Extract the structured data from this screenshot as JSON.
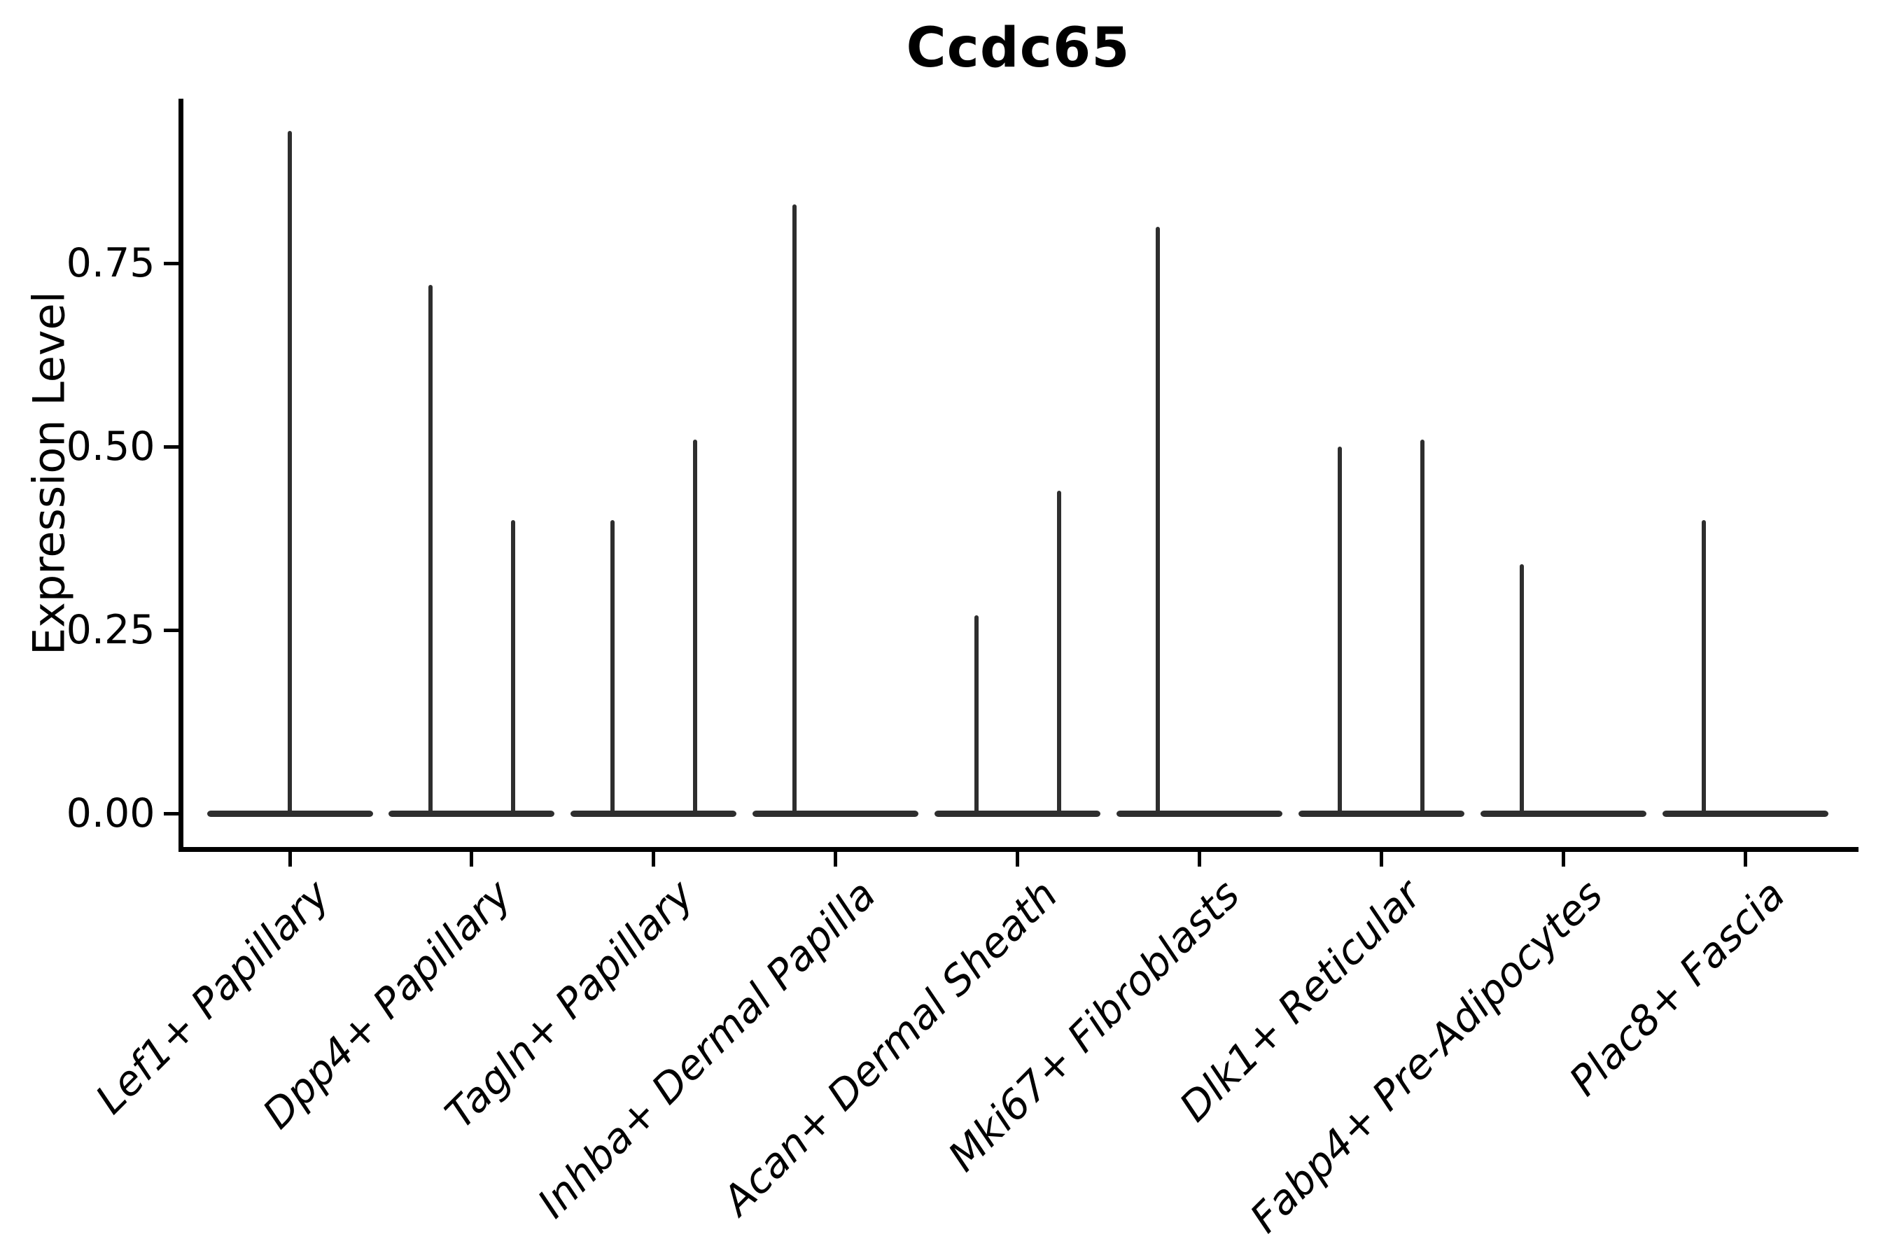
{
  "figure": {
    "title": "Ccdc65",
    "ylabel": "Expression Level",
    "background": "#ffffff"
  },
  "chart_data": {
    "type": "violin",
    "title": "Ccdc65",
    "xlabel": "",
    "ylabel": "Expression Level",
    "ylim": [
      -0.05,
      0.97
    ],
    "grid": false,
    "legend": "none",
    "yticks": [
      {
        "label": "0.00",
        "value": 0.0
      },
      {
        "label": "0.25",
        "value": 0.25
      },
      {
        "label": "0.50",
        "value": 0.5
      },
      {
        "label": "0.75",
        "value": 0.75
      }
    ],
    "categories": [
      "Lef1+ Papillary",
      "Dpp4+ Papillary",
      "Tagln+ Papillary",
      "Inhba+ Dermal Papilla",
      "Acan+ Dermal Sheath",
      "Mki67+ Fibroblasts",
      "Dlk1+ Reticular",
      "Fabp4+ Pre-Adipocytes",
      "Plac8+ Fascia"
    ],
    "violins": [
      {
        "category": "Lef1+ Papillary",
        "baseline_value": 0.0,
        "spikes": [
          {
            "pos": "center",
            "max_value": 0.93
          }
        ]
      },
      {
        "category": "Dpp4+ Papillary",
        "baseline_value": 0.0,
        "spikes": [
          {
            "pos": "left",
            "max_value": 0.72
          },
          {
            "pos": "right",
            "max_value": 0.4
          }
        ]
      },
      {
        "category": "Tagln+ Papillary",
        "baseline_value": 0.0,
        "spikes": [
          {
            "pos": "left",
            "max_value": 0.4
          },
          {
            "pos": "right",
            "max_value": 0.51
          }
        ]
      },
      {
        "category": "Inhba+ Dermal Papilla",
        "baseline_value": 0.0,
        "spikes": [
          {
            "pos": "left",
            "max_value": 0.83
          }
        ]
      },
      {
        "category": "Acan+ Dermal Sheath",
        "baseline_value": 0.0,
        "spikes": [
          {
            "pos": "left",
            "max_value": 0.27
          },
          {
            "pos": "right",
            "max_value": 0.44
          }
        ]
      },
      {
        "category": "Mki67+ Fibroblasts",
        "baseline_value": 0.0,
        "spikes": [
          {
            "pos": "left",
            "max_value": 0.8
          }
        ]
      },
      {
        "category": "Dlk1+ Reticular",
        "baseline_value": 0.0,
        "spikes": [
          {
            "pos": "left",
            "max_value": 0.5
          },
          {
            "pos": "right",
            "max_value": 0.51
          }
        ]
      },
      {
        "category": "Fabp4+ Pre-Adipocytes",
        "baseline_value": 0.0,
        "spikes": [
          {
            "pos": "left",
            "max_value": 0.34
          }
        ]
      },
      {
        "category": "Plac8+ Fascia",
        "baseline_value": 0.0,
        "spikes": [
          {
            "pos": "left",
            "max_value": 0.4
          }
        ]
      }
    ],
    "colors": {
      "violin": "#2e2e2e",
      "axis": "#000000",
      "text": "#000000"
    }
  }
}
